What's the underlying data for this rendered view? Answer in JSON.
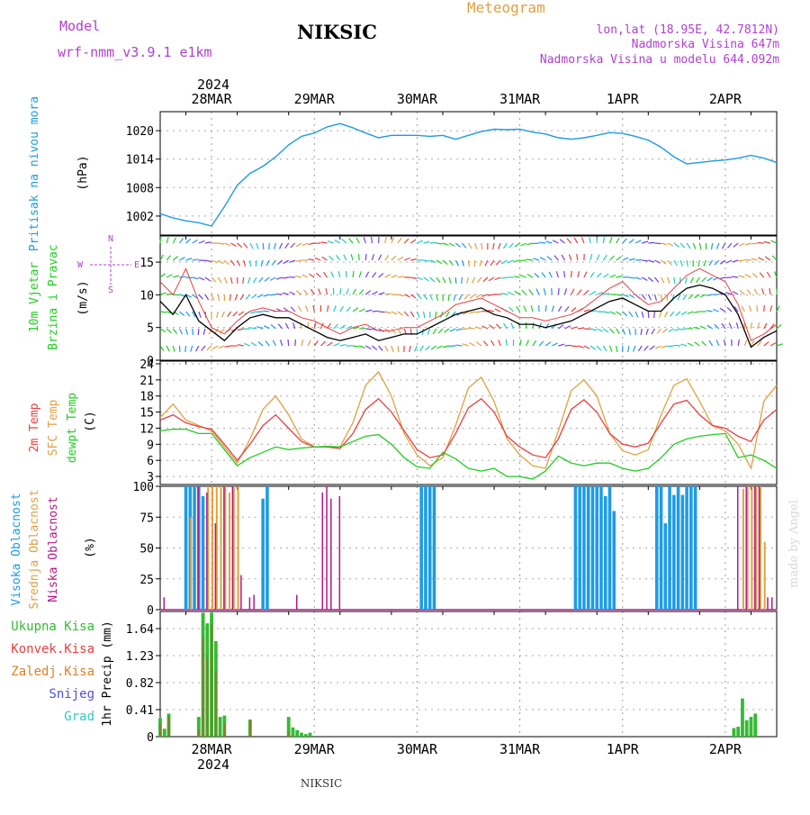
{
  "header": {
    "model_label": "Model",
    "model_name": "wrf-nmm_v3.9.1 e1km",
    "station": "NIKSIC",
    "meteogram_label": "Meteogram",
    "coords": "lon,lat (18.95E, 42.7812N)",
    "elevation": "Nadmorska Visina 647m",
    "model_elevation": "Nadmorska Visina u modelu 644.092m",
    "footer_station": "NIKSIC",
    "credit": "made by Angel"
  },
  "colors": {
    "pressure": "#1e9be6",
    "cloud_high": "#1e9be6",
    "cloud_mid": "#e0a040",
    "cloud_low": "#b0198a",
    "temp_2m": "#e84040",
    "temp_sfc": "#e0a040",
    "dewpoint": "#22cc22",
    "precip_total": "#33bb33",
    "precip_conv": "#e84040",
    "precip_frz": "#e0802a",
    "precip_snow": "#5050e0",
    "precip_hail": "#33c8c8",
    "purple_text": "#b040d0"
  },
  "time_axis": {
    "year_top": "2024",
    "year_bottom": "2024",
    "day_labels": [
      "28MAR",
      "29MAR",
      "30MAR",
      "31MAR",
      "1APR",
      "2APR"
    ],
    "day_offsets_h": [
      0,
      24,
      48,
      72,
      96,
      120
    ],
    "start_h": -12,
    "end_h": 132
  },
  "chart_data": [
    {
      "type": "line",
      "name": "pressure",
      "ylabel_side": "Pritisak na nivou mora",
      "ylabel": "(hPa)",
      "yticks": [
        1002,
        1008,
        1014,
        1020
      ],
      "ylim": [
        998,
        1024
      ],
      "x": [
        -12,
        -9,
        -6,
        -3,
        0,
        3,
        6,
        9,
        12,
        15,
        18,
        21,
        24,
        27,
        30,
        33,
        36,
        39,
        42,
        45,
        48,
        51,
        54,
        57,
        60,
        63,
        66,
        69,
        72,
        75,
        78,
        81,
        84,
        87,
        90,
        93,
        96,
        99,
        102,
        105,
        108,
        111,
        114,
        117,
        120,
        123,
        126,
        129,
        132
      ],
      "y": [
        1002.5,
        1001.6,
        1001,
        1000.6,
        999.9,
        1004,
        1008.5,
        1011,
        1012.5,
        1014.5,
        1017,
        1018.8,
        1019.5,
        1020.8,
        1021.5,
        1020.6,
        1019.5,
        1018.5,
        1019,
        1019,
        1019,
        1018.8,
        1019,
        1018.2,
        1019,
        1019.8,
        1020.3,
        1020.2,
        1020.3,
        1019.7,
        1019.3,
        1018.5,
        1018.2,
        1018.5,
        1019,
        1019.6,
        1019.4,
        1018.8,
        1018,
        1016.5,
        1014.5,
        1013,
        1013.3,
        1013.6,
        1013.8,
        1014.2,
        1014.8,
        1014.2,
        1013.3
      ],
      "grid": true
    },
    {
      "type": "line",
      "name": "wind",
      "ylabel_side": [
        "10m Vjetar",
        "Brzina i Pravac"
      ],
      "ylabel": "(m/s)",
      "compass": "N / W E / S",
      "yticks": [
        0,
        5,
        10,
        15
      ],
      "ylim": [
        0,
        19
      ],
      "x": [
        -12,
        -9,
        -6,
        -3,
        0,
        3,
        6,
        9,
        12,
        15,
        18,
        21,
        24,
        27,
        30,
        33,
        36,
        39,
        42,
        45,
        48,
        51,
        54,
        57,
        60,
        63,
        66,
        69,
        72,
        75,
        78,
        81,
        84,
        87,
        90,
        93,
        96,
        99,
        102,
        105,
        108,
        111,
        114,
        117,
        120,
        123,
        126,
        129,
        132
      ],
      "speed": [
        9,
        7,
        10,
        6,
        4.5,
        3,
        5,
        6.5,
        7,
        6.5,
        6.5,
        5.5,
        4.5,
        3.5,
        3,
        3.5,
        4,
        3,
        3.5,
        4,
        4,
        5,
        6,
        7,
        7.5,
        8,
        7,
        6.5,
        5.5,
        5.5,
        5,
        5.5,
        6,
        7,
        8,
        9,
        9.5,
        8.5,
        7.5,
        7.5,
        9.5,
        11,
        11.5,
        11,
        10,
        7,
        2,
        3.5,
        4.5
      ],
      "gust": [
        12,
        10,
        14,
        9,
        5,
        4,
        6,
        7.5,
        8,
        7.5,
        7.5,
        6.5,
        6,
        5,
        4,
        5,
        5.5,
        4.5,
        4.5,
        5,
        5,
        6,
        7,
        8.5,
        9,
        9.5,
        8.5,
        7.5,
        6.5,
        6.5,
        6,
        6.5,
        7,
        8,
        9.5,
        11,
        12,
        10,
        8.5,
        9,
        11,
        13,
        14,
        13,
        12,
        8.5,
        3,
        4,
        5.5
      ],
      "grid": true
    },
    {
      "type": "line",
      "name": "temperature",
      "ylabel_side": [
        "2m Temp",
        "SFC Temp",
        "dewpt Temp"
      ],
      "ylabel": "(C)",
      "yticks": [
        3,
        6,
        9,
        12,
        15,
        18,
        21,
        24
      ],
      "ylim": [
        1.5,
        24.5
      ],
      "x": [
        -12,
        -9,
        -6,
        -3,
        0,
        3,
        6,
        9,
        12,
        15,
        18,
        21,
        24,
        27,
        30,
        33,
        36,
        39,
        42,
        45,
        48,
        51,
        54,
        57,
        60,
        63,
        66,
        69,
        72,
        75,
        78,
        81,
        84,
        87,
        90,
        93,
        96,
        99,
        102,
        105,
        108,
        111,
        114,
        117,
        120,
        123,
        126,
        129,
        132
      ],
      "series": [
        {
          "name": "2m Temp",
          "values": [
            13.5,
            14.5,
            13,
            12.3,
            11.8,
            9,
            6,
            9,
            12.5,
            14.5,
            12,
            9.5,
            8.5,
            8.5,
            8.2,
            11,
            15.5,
            17.5,
            15,
            11.5,
            8,
            6.5,
            7,
            11,
            15.8,
            17.5,
            15,
            10.5,
            8.5,
            7,
            6.5,
            10,
            15.5,
            17.3,
            15,
            11,
            9,
            8.5,
            9.2,
            13,
            16.5,
            17.2,
            14.5,
            12.5,
            12,
            10.5,
            9.5,
            13.5,
            15.5
          ]
        },
        {
          "name": "SFC Temp",
          "values": [
            14,
            16.5,
            13.5,
            12.5,
            11.5,
            8.5,
            5.5,
            10,
            15.5,
            18,
            14.5,
            10,
            8.5,
            8.5,
            8.5,
            13,
            20,
            22.5,
            18,
            11,
            7,
            5,
            6.5,
            12.5,
            19.5,
            21.5,
            17,
            10,
            7,
            5,
            4.5,
            11.5,
            19,
            21,
            18,
            11,
            7.8,
            7,
            8,
            14.5,
            20,
            21.2,
            17,
            12.5,
            11.5,
            9,
            4.5,
            17,
            20
          ]
        },
        {
          "name": "dewpt Temp",
          "values": [
            11.5,
            11.8,
            11.8,
            11,
            11,
            8,
            5,
            6.5,
            7.5,
            8.5,
            8,
            8.3,
            8.5,
            8.6,
            8.5,
            9.5,
            10.5,
            10.8,
            9,
            6.5,
            4.8,
            4.5,
            7.5,
            6.3,
            4.5,
            4,
            4.5,
            3,
            3,
            2.5,
            4,
            6.8,
            5.5,
            5,
            5.5,
            5.5,
            4.5,
            4,
            4.5,
            6.5,
            9,
            10,
            10.5,
            10.8,
            11,
            6.5,
            7,
            6,
            4.5
          ]
        }
      ],
      "grid": true
    },
    {
      "type": "bar",
      "name": "clouds",
      "ylabel_side": [
        "Visoka Oblacnost",
        "Srednja Oblacnost",
        "Niska Oblacnost"
      ],
      "ylabel": "(%)",
      "yticks": [
        0,
        25,
        50,
        75,
        100
      ],
      "ylim": [
        0,
        100
      ],
      "series": [
        {
          "name": "Visoka Oblacnost",
          "x": [
            -6,
            -5,
            -4,
            -3,
            -2,
            12,
            13,
            49,
            50,
            51,
            52,
            85,
            86,
            87,
            88,
            89,
            90,
            91,
            92,
            93,
            94,
            104,
            105,
            106,
            107,
            108,
            109,
            110,
            111,
            112,
            113
          ],
          "values": [
            100,
            100,
            100,
            100,
            92,
            90,
            100,
            100,
            100,
            100,
            100,
            100,
            100,
            100,
            100,
            100,
            100,
            100,
            92,
            100,
            80,
            100,
            100,
            70,
            100,
            93,
            100,
            93,
            100,
            100,
            100
          ]
        },
        {
          "name": "Srednja Oblacnost",
          "x": [
            -5,
            -1,
            0,
            1,
            2,
            3,
            4,
            5,
            6,
            124,
            125,
            126,
            127,
            128,
            129
          ],
          "values": [
            75,
            100,
            100,
            100,
            100,
            100,
            95,
            100,
            100,
            98,
            100,
            100,
            100,
            100,
            55
          ]
        },
        {
          "name": "Niska Oblacnost",
          "x": [
            -11,
            -3,
            -1,
            1,
            3,
            5,
            7,
            9,
            10,
            20,
            26,
            27,
            28,
            30,
            123,
            125,
            127,
            128,
            130,
            131
          ],
          "values": [
            10,
            100,
            95,
            70,
            100,
            100,
            28,
            10,
            12,
            12,
            95,
            100,
            90,
            92,
            100,
            100,
            100,
            100,
            10,
            10
          ]
        }
      ],
      "grid": true
    },
    {
      "type": "bar",
      "name": "precipitation",
      "legend": [
        "Ukupna Kisa",
        "Konvek.Kisa",
        "Zaledj.Kisa",
        "Snijeg",
        "Grad"
      ],
      "ylabel": "1hr Precip (mm)",
      "yticks": [
        0,
        0.41,
        0.82,
        1.23,
        1.64
      ],
      "ylim": [
        0,
        1.9
      ],
      "series": [
        {
          "name": "Ukupna Kisa",
          "x": [
            -12,
            -11,
            -10,
            -3,
            -2,
            -1,
            0,
            1,
            2,
            3,
            9,
            18,
            19,
            20,
            21,
            22,
            23,
            122,
            123,
            124,
            125,
            126,
            127
          ],
          "values": [
            0.28,
            0.12,
            0.35,
            0.3,
            1.88,
            1.72,
            1.88,
            1.45,
            0.3,
            0.32,
            0.26,
            0.3,
            0.14,
            0.1,
            0.06,
            0.04,
            0.06,
            0.13,
            0.15,
            0.58,
            0.25,
            0.3,
            0.35
          ]
        },
        {
          "name": "Konvek.Kisa",
          "x": [
            -12,
            -10,
            -3,
            -2,
            -1,
            0,
            1,
            3,
            9,
            18
          ],
          "values": [
            0.2,
            0.3,
            0.1,
            1.5,
            1.2,
            1.7,
            1.0,
            0.2,
            0.26,
            0.08
          ]
        }
      ],
      "grid": true
    }
  ]
}
